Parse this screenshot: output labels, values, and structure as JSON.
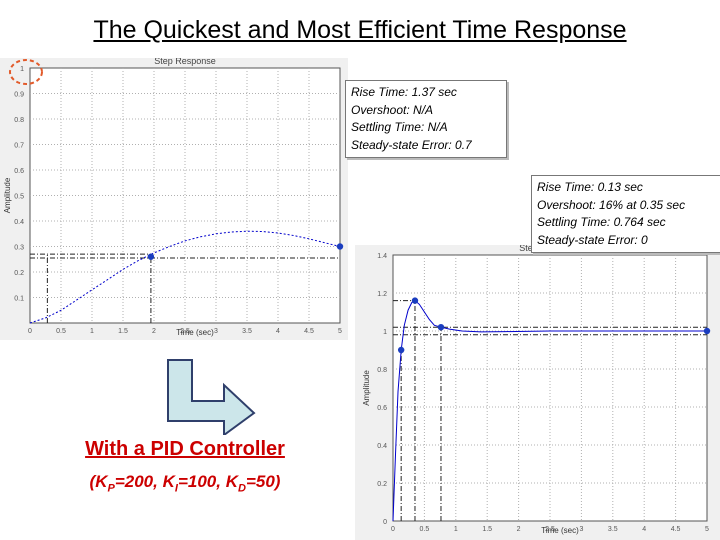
{
  "slide": {
    "title": "The Quickest and Most Efficient Time Response",
    "pid_title": "With a PID Controller",
    "gains": [
      {
        "symbol": "K",
        "sub": "P",
        "value": "200"
      },
      {
        "symbol": "K",
        "sub": "I",
        "value": "100"
      },
      {
        "symbol": "K",
        "sub": "D",
        "value": "50"
      }
    ]
  },
  "info_boxes": [
    {
      "lines": [
        "Rise Time: 1.37 sec",
        "Overshoot: N/A",
        "Settling Time: N/A",
        "Steady-state Error: 0.7"
      ]
    },
    {
      "lines": [
        "Rise Time: 0.13 sec",
        "Overshoot: 16% at 0.35 sec",
        "Settling Time: 0.764 sec",
        "Steady-state Error: 0"
      ]
    }
  ],
  "colors": {
    "title": "#000000",
    "pid_text": "#cc0000",
    "response_line": "#0000cc",
    "marker": "#1a3dbf",
    "highlight_circle": "#e25a2a",
    "arrow_fill": "#cce6ea",
    "arrow_stroke": "#2f3f6b"
  },
  "chart_data": [
    {
      "type": "line",
      "title": "Step Response",
      "xlabel": "Time (sec)",
      "ylabel": "Amplitude",
      "xlim": [
        0,
        5
      ],
      "ylim": [
        0,
        1
      ],
      "grid": true,
      "x_ticks": [
        "0",
        "0.5",
        "1",
        "1.5",
        "2",
        "2.5",
        "3",
        "3.5",
        "4",
        "4.5",
        "5"
      ],
      "y_ticks": [
        "1",
        "0.9",
        "0.8",
        "0.7",
        "0.6",
        "0.5",
        "0.4",
        "0.3",
        "0.2",
        "0.1",
        ""
      ],
      "series": [
        {
          "x": [
            0,
            0.25,
            0.5,
            0.75,
            1,
            1.25,
            1.5,
            1.75,
            2,
            2.25,
            2.5,
            2.75,
            3,
            3.25,
            3.5,
            3.75,
            4,
            4.25,
            4.5,
            4.75,
            5
          ],
          "y": [
            0,
            0.02,
            0.05,
            0.09,
            0.13,
            0.17,
            0.21,
            0.245,
            0.275,
            0.3,
            0.322,
            0.338,
            0.35,
            0.357,
            0.36,
            0.359,
            0.353,
            0.343,
            0.33,
            0.315,
            0.3
          ]
        }
      ],
      "markers": [
        {
          "x": 1.95,
          "y": 0.26
        },
        {
          "x": 5.0,
          "y": 0.3
        }
      ],
      "reference_lines": [
        {
          "y": 0.27,
          "x_end": 1.95
        },
        {
          "y": 0.255,
          "x_end": 5.0
        },
        {
          "x": 1.95,
          "y_end": 0.26
        },
        {
          "x": 0.28,
          "y_end": 0.27
        }
      ],
      "highlight": {
        "x": 0,
        "y": 1,
        "label": "1"
      }
    },
    {
      "type": "line",
      "title": "Step Response",
      "xlabel": "Time (sec)",
      "ylabel": "Amplitude",
      "xlim": [
        0,
        5
      ],
      "ylim": [
        0,
        1.4
      ],
      "grid": true,
      "x_ticks": [
        "0",
        "0.5",
        "1",
        "1.5",
        "2",
        "2.5",
        "3",
        "3.5",
        "4",
        "4.5",
        "5"
      ],
      "y_ticks": [
        "0",
        "0.2",
        "0.4",
        "0.6",
        "0.8",
        "1",
        "1.2",
        "1.4"
      ],
      "series": [
        {
          "x": [
            0,
            0.04,
            0.08,
            0.13,
            0.18,
            0.24,
            0.3,
            0.35,
            0.42,
            0.5,
            0.58,
            0.66,
            0.764,
            0.9,
            1.1,
            1.4,
            1.8,
            2.5,
            3,
            4,
            5
          ],
          "y": [
            0,
            0.35,
            0.68,
            0.9,
            1.03,
            1.11,
            1.15,
            1.16,
            1.14,
            1.1,
            1.06,
            1.03,
            1.02,
            1.01,
            1.0,
            0.995,
            0.997,
            1.0,
            1.0,
            1.0,
            1.0
          ]
        }
      ],
      "markers": [
        {
          "x": 0.13,
          "y": 0.9
        },
        {
          "x": 0.35,
          "y": 1.16
        },
        {
          "x": 0.764,
          "y": 1.02
        },
        {
          "x": 5.0,
          "y": 1.0
        }
      ],
      "reference_lines": [
        {
          "y": 1.16,
          "x_end": 0.35
        },
        {
          "y": 1.02,
          "x_end": 5.0
        },
        {
          "y": 0.98,
          "x_end": 5.0
        },
        {
          "x": 0.13,
          "y_end": 0.9
        },
        {
          "x": 0.35,
          "y_end": 1.16
        },
        {
          "x": 0.764,
          "y_end": 1.02
        }
      ]
    }
  ]
}
